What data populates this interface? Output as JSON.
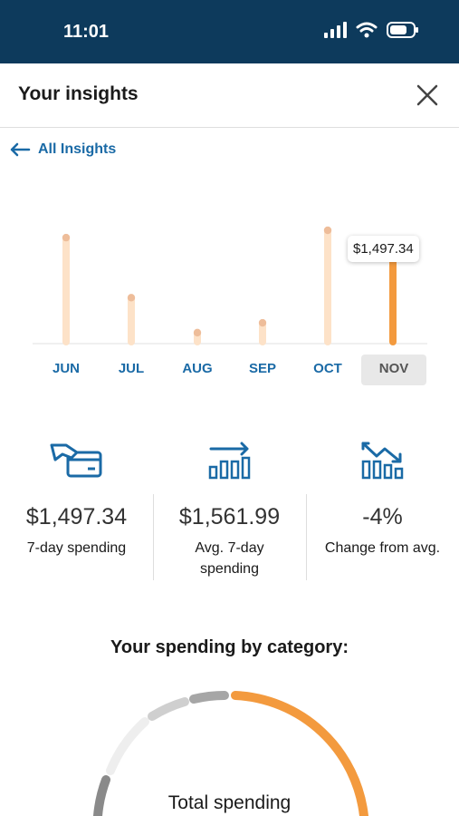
{
  "status_bar": {
    "time": "11:01"
  },
  "header": {
    "title": "Your insights"
  },
  "nav": {
    "back_label": "All Insights"
  },
  "chart_data": {
    "type": "bar",
    "categories": [
      "JUN",
      "JUL",
      "AUG",
      "SEP",
      "OCT",
      "NOV"
    ],
    "values": [
      1700,
      720,
      150,
      310,
      1820,
      1497.34
    ],
    "selected": "NOV",
    "tooltip": "$1,497.34",
    "colors": {
      "bar": "#fde2c8",
      "bar_selected": "#f39a3e",
      "dot": "#eebd9a",
      "dot_selected": "#a8622a"
    }
  },
  "stats": [
    {
      "icon": "card-payment-icon",
      "value": "$1,497.34",
      "label": "7-day spending"
    },
    {
      "icon": "trend-up-chart-icon",
      "value": "$1,561.99",
      "label": "Avg. 7-day spending"
    },
    {
      "icon": "trend-down-chart-icon",
      "value": "-4%",
      "label": "Change from avg."
    }
  ],
  "category": {
    "title": "Your spending by category:",
    "center_label": "Total spending"
  },
  "colors": {
    "brand_blue": "#1a6aa6",
    "status_bar": "#0d3a5c",
    "accent_orange": "#f39a3e"
  }
}
